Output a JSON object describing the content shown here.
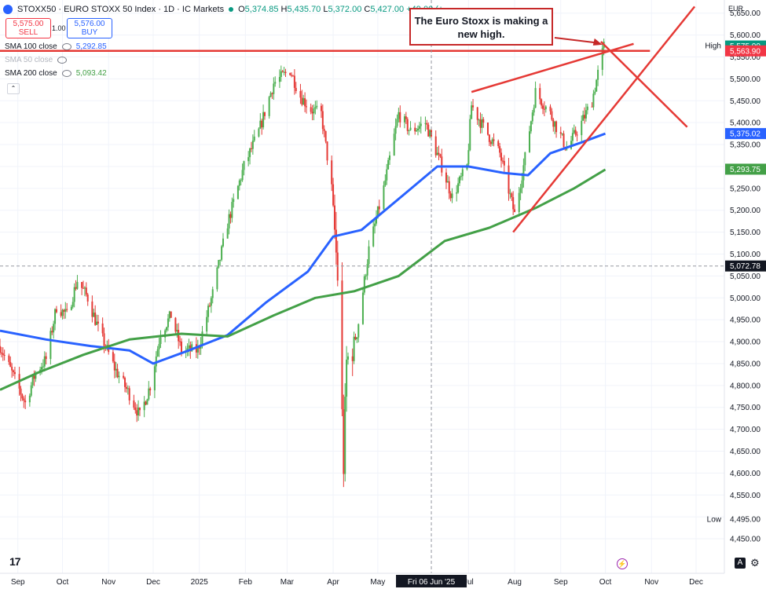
{
  "header": {
    "symbol": "STOXX50 · EURO STOXX 50 Index · 1D · IC Markets",
    "ohlc": [
      {
        "label": "O",
        "value": "5,374.85"
      },
      {
        "label": "H",
        "value": "5,435.70"
      },
      {
        "label": "L",
        "value": "5,372.00"
      },
      {
        "label": "C",
        "value": "5,427.00"
      },
      {
        "label": "",
        "value": "+49.00 (+"
      }
    ],
    "sell_price": "5,575.00",
    "sell_label": "SELL",
    "spread": "1.00",
    "buy_price": "5,576.00",
    "buy_label": "BUY"
  },
  "indicators": [
    {
      "label": "SMA 100 close",
      "value": "5,292.85",
      "color": "#2962ff"
    },
    {
      "label": "SMA 50 close",
      "value": "",
      "color": "#787b86"
    },
    {
      "label": "SMA 200 close",
      "value": "5,093.42",
      "color": "#43a047"
    }
  ],
  "annotation": "The Euro Stoxx is making a new high.",
  "axis_currency": "EUR",
  "footer": {
    "logo": "17",
    "auto_btn": "A",
    "gear": "⚙",
    "bolt": "⚡"
  },
  "chart_data": {
    "type": "candlestick",
    "ylim": [
      4425,
      5680
    ],
    "y_ticks": [
      "4,450.00",
      "4,500.00",
      "4,550.00",
      "4,600.00",
      "4,650.00",
      "4,700.00",
      "4,750.00",
      "4,800.00",
      "4,850.00",
      "4,900.00",
      "4,950.00",
      "5,000.00",
      "5,050.00",
      "5,100.00",
      "5,150.00",
      "5,200.00",
      "5,250.00",
      "5,300.00",
      "5,350.00",
      "5,400.00",
      "5,450.00",
      "5,500.00",
      "5,550.00",
      "5,600.00",
      "5,650.00"
    ],
    "x_ticks": [
      {
        "label": "Sep",
        "date": "2024-09-01"
      },
      {
        "label": "Oct",
        "date": "2024-10-01"
      },
      {
        "label": "Nov",
        "date": "2024-11-01"
      },
      {
        "label": "Dec",
        "date": "2024-12-01"
      },
      {
        "label": "2025",
        "date": "2025-01-01"
      },
      {
        "label": "Feb",
        "date": "2025-02-01"
      },
      {
        "label": "Mar",
        "date": "2025-03-01"
      },
      {
        "label": "Apr",
        "date": "2025-04-01"
      },
      {
        "label": "May",
        "date": "2025-05-01"
      },
      {
        "label": "Jul",
        "date": "2025-07-01"
      },
      {
        "label": "Aug",
        "date": "2025-08-01"
      },
      {
        "label": "Sep",
        "date": "2025-09-01"
      },
      {
        "label": "Oct",
        "date": "2025-10-01"
      },
      {
        "label": "Nov",
        "date": "2025-11-01"
      },
      {
        "label": "Dec",
        "date": "2025-12-01"
      }
    ],
    "crosshair": {
      "date_label": "Fri 06 Jun '25",
      "date": "2025-06-06",
      "price_label": "5,072.78",
      "price": 5072.78
    },
    "price_labels": [
      {
        "text": "5,576.00",
        "value": 5576,
        "bg": "#ffffff",
        "fg": "#131722"
      },
      {
        "text": "5,575.00",
        "value": 5575,
        "bg": "#089981",
        "fg": "#ffffff"
      },
      {
        "text": "5,563.90",
        "value": 5563.9,
        "bg": "#f23645",
        "fg": "#ffffff"
      },
      {
        "text": "5,375.02",
        "value": 5375.02,
        "bg": "#2962ff",
        "fg": "#ffffff"
      },
      {
        "text": "5,293.75",
        "value": 5293.75,
        "bg": "#43a047",
        "fg": "#ffffff"
      },
      {
        "text": "5,072.78",
        "value": 5072.78,
        "bg": "#131722",
        "fg": "#ffffff"
      },
      {
        "text": "4,495.00",
        "value": 4495,
        "bg": "#ffffff",
        "fg": "#131722"
      }
    ],
    "high_label": "High",
    "low_label": "Low",
    "key_points": [
      {
        "date": "2024-08-20",
        "price": 4890
      },
      {
        "date": "2024-09-06",
        "price": 4760
      },
      {
        "date": "2024-09-13",
        "price": 4830
      },
      {
        "date": "2024-09-20",
        "price": 4860
      },
      {
        "date": "2024-09-27",
        "price": 4980
      },
      {
        "date": "2024-10-04",
        "price": 4960
      },
      {
        "date": "2024-10-11",
        "price": 5040
      },
      {
        "date": "2024-10-18",
        "price": 5000
      },
      {
        "date": "2024-10-25",
        "price": 4930
      },
      {
        "date": "2024-11-05",
        "price": 4840
      },
      {
        "date": "2024-11-15",
        "price": 4780
      },
      {
        "date": "2024-11-22",
        "price": 4730
      },
      {
        "date": "2024-11-29",
        "price": 4800
      },
      {
        "date": "2024-12-06",
        "price": 4920
      },
      {
        "date": "2024-12-13",
        "price": 4960
      },
      {
        "date": "2024-12-20",
        "price": 4880
      },
      {
        "date": "2024-12-31",
        "price": 4880
      },
      {
        "date": "2025-01-10",
        "price": 5010
      },
      {
        "date": "2025-01-20",
        "price": 5170
      },
      {
        "date": "2025-01-31",
        "price": 5300
      },
      {
        "date": "2025-02-10",
        "price": 5380
      },
      {
        "date": "2025-02-20",
        "price": 5490
      },
      {
        "date": "2025-03-03",
        "price": 5520
      },
      {
        "date": "2025-03-10",
        "price": 5460
      },
      {
        "date": "2025-03-17",
        "price": 5430
      },
      {
        "date": "2025-03-24",
        "price": 5420
      },
      {
        "date": "2025-03-31",
        "price": 5250
      },
      {
        "date": "2025-04-04",
        "price": 5050
      },
      {
        "date": "2025-04-08",
        "price": 4620
      },
      {
        "date": "2025-04-10",
        "price": 4850
      },
      {
        "date": "2025-04-17",
        "price": 4920
      },
      {
        "date": "2025-04-25",
        "price": 5110
      },
      {
        "date": "2025-05-05",
        "price": 5250
      },
      {
        "date": "2025-05-15",
        "price": 5420
      },
      {
        "date": "2025-05-23",
        "price": 5380
      },
      {
        "date": "2025-06-02",
        "price": 5400
      },
      {
        "date": "2025-06-13",
        "price": 5300
      },
      {
        "date": "2025-06-20",
        "price": 5230
      },
      {
        "date": "2025-06-30",
        "price": 5300
      },
      {
        "date": "2025-07-03",
        "price": 5440
      },
      {
        "date": "2025-07-11",
        "price": 5390
      },
      {
        "date": "2025-07-22",
        "price": 5330
      },
      {
        "date": "2025-08-01",
        "price": 5190
      },
      {
        "date": "2025-08-08",
        "price": 5320
      },
      {
        "date": "2025-08-15",
        "price": 5470
      },
      {
        "date": "2025-08-25",
        "price": 5420
      },
      {
        "date": "2025-09-05",
        "price": 5340
      },
      {
        "date": "2025-09-15",
        "price": 5400
      },
      {
        "date": "2025-09-22",
        "price": 5450
      },
      {
        "date": "2025-09-30",
        "price": 5575
      }
    ],
    "series": [
      {
        "name": "SMA 100 close",
        "color": "#2962ff",
        "points": [
          [
            "2024-08-20",
            4925
          ],
          [
            "2024-09-20",
            4905
          ],
          [
            "2024-10-20",
            4890
          ],
          [
            "2024-11-15",
            4880
          ],
          [
            "2024-12-01",
            4850
          ],
          [
            "2024-12-25",
            4880
          ],
          [
            "2025-01-20",
            4915
          ],
          [
            "2025-02-15",
            4990
          ],
          [
            "2025-03-15",
            5060
          ],
          [
            "2025-04-01",
            5140
          ],
          [
            "2025-04-20",
            5155
          ],
          [
            "2025-05-20",
            5240
          ],
          [
            "2025-06-10",
            5300
          ],
          [
            "2025-07-01",
            5300
          ],
          [
            "2025-07-25",
            5285
          ],
          [
            "2025-08-10",
            5280
          ],
          [
            "2025-08-25",
            5330
          ],
          [
            "2025-09-15",
            5355
          ],
          [
            "2025-10-01",
            5375
          ]
        ]
      },
      {
        "name": "SMA 200 close",
        "color": "#43a047",
        "points": [
          [
            "2024-08-20",
            4790
          ],
          [
            "2024-09-15",
            4830
          ],
          [
            "2024-10-15",
            4870
          ],
          [
            "2024-11-15",
            4905
          ],
          [
            "2024-12-20",
            4918
          ],
          [
            "2025-01-20",
            4912
          ],
          [
            "2025-02-20",
            4960
          ],
          [
            "2025-03-20",
            5000
          ],
          [
            "2025-04-15",
            5015
          ],
          [
            "2025-05-15",
            5050
          ],
          [
            "2025-06-15",
            5130
          ],
          [
            "2025-07-15",
            5160
          ],
          [
            "2025-08-15",
            5205
          ],
          [
            "2025-09-10",
            5250
          ],
          [
            "2025-10-01",
            5293
          ]
        ]
      }
    ],
    "trendlines": [
      {
        "color": "#e53935",
        "points": [
          [
            "2024-08-20",
            5563.9
          ],
          [
            "2025-10-31",
            5563.9
          ]
        ]
      },
      {
        "color": "#e53935",
        "points": [
          [
            "2025-07-03",
            5470
          ],
          [
            "2025-10-20",
            5580
          ]
        ]
      },
      {
        "color": "#e53935",
        "points": [
          [
            "2025-07-31",
            5150
          ],
          [
            "2025-11-30",
            5665
          ]
        ]
      },
      {
        "color": "#e53935",
        "points": [
          [
            "2025-09-28",
            5585
          ],
          [
            "2025-11-25",
            5390
          ]
        ]
      }
    ]
  }
}
